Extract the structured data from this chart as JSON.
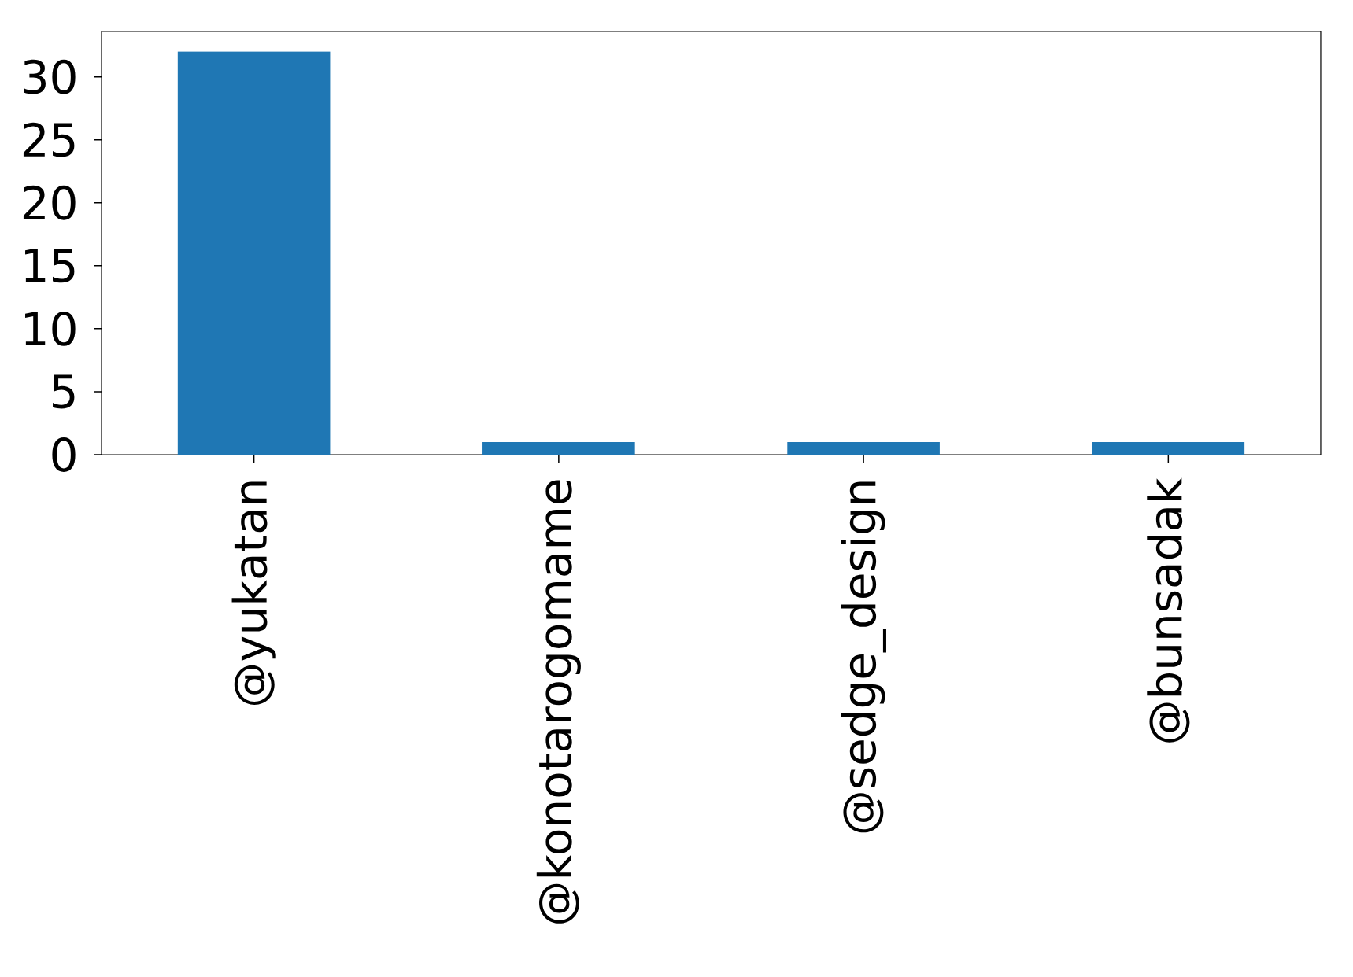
{
  "chart_data": {
    "type": "bar",
    "categories": [
      "@yukatan",
      "@konotarogomame",
      "@sedge_design",
      "@bunsadak"
    ],
    "values": [
      32,
      1,
      1,
      1
    ],
    "color": "#1f77b4",
    "ylim": [
      0,
      33.6
    ],
    "yticks": [
      0,
      5,
      10,
      15,
      20,
      25,
      30
    ],
    "grid": false
  }
}
